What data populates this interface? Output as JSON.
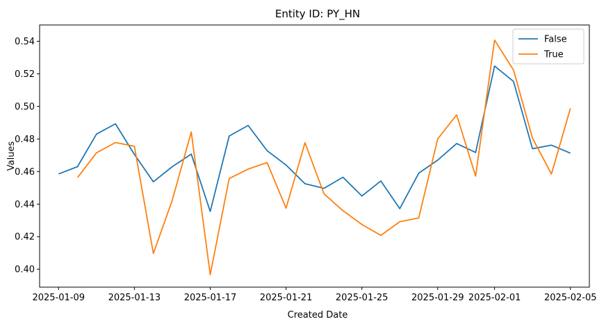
{
  "chart_data": {
    "type": "line",
    "title": "Entity ID: PY_HN",
    "xlabel": "Created Date",
    "ylabel": "Values",
    "x": [
      "2025-01-09",
      "2025-01-10",
      "2025-01-11",
      "2025-01-12",
      "2025-01-13",
      "2025-01-14",
      "2025-01-15",
      "2025-01-16",
      "2025-01-17",
      "2025-01-18",
      "2025-01-19",
      "2025-01-20",
      "2025-01-21",
      "2025-01-22",
      "2025-01-23",
      "2025-01-24",
      "2025-01-25",
      "2025-01-26",
      "2025-01-27",
      "2025-01-28",
      "2025-01-29",
      "2025-01-30",
      "2025-01-31",
      "2025-02-01",
      "2025-02-02",
      "2025-02-03",
      "2025-02-04",
      "2025-02-05"
    ],
    "x_ticks": [
      "2025-01-09",
      "2025-01-13",
      "2025-01-17",
      "2025-01-21",
      "2025-01-25",
      "2025-01-29",
      "2025-02-01",
      "2025-02-05"
    ],
    "xlim": [
      "2025-01-08",
      "2025-02-06"
    ],
    "ylim": [
      0.389,
      0.55
    ],
    "y_ticks": [
      0.4,
      0.42,
      0.44,
      0.46,
      0.48,
      0.5,
      0.52,
      0.54
    ],
    "y_tick_labels": [
      "0.40",
      "0.42",
      "0.44",
      "0.46",
      "0.48",
      "0.50",
      "0.52",
      "0.54"
    ],
    "grid": false,
    "legend_position": "top-right",
    "series": [
      {
        "name": "False",
        "color": "#1f77b4",
        "values": [
          0.4585,
          0.463,
          0.483,
          0.4893,
          0.4705,
          0.4537,
          0.463,
          0.4707,
          0.4355,
          0.4818,
          0.4883,
          0.4728,
          0.464,
          0.4525,
          0.4497,
          0.4565,
          0.445,
          0.4542,
          0.4372,
          0.459,
          0.467,
          0.4772,
          0.4717,
          0.5248,
          0.5153,
          0.474,
          0.4762,
          0.4713
        ]
      },
      {
        "name": "True",
        "color": "#ff7f0e",
        "values": [
          null,
          0.4563,
          0.4715,
          0.4778,
          0.4755,
          0.4097,
          0.4425,
          0.4843,
          0.3967,
          0.4557,
          0.4615,
          0.4655,
          0.4375,
          0.4777,
          0.4463,
          0.436,
          0.4275,
          0.4208,
          0.4292,
          0.4315,
          0.48,
          0.4948,
          0.4572,
          0.5407,
          0.5223,
          0.4805,
          0.4585,
          0.4988
        ]
      }
    ]
  }
}
